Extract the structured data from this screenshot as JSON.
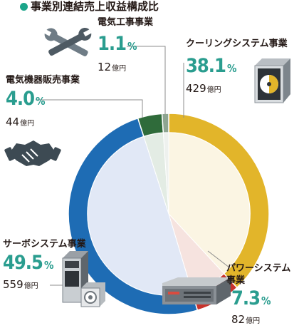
{
  "title": "事業別連結売上収益構成比",
  "colors": {
    "cooling": "#e2b52a",
    "power": "#c8332c",
    "servo": "#1e6cb4",
    "sales": "#2f6b3a",
    "electric": "#8ea591",
    "teal": "#2a9d8f"
  },
  "chart_data": {
    "type": "pie",
    "style": "donut",
    "unit": "億円",
    "categories": [
      "クーリングシステム事業",
      "パワーシステム事業",
      "サーボシステム事業",
      "電気機器販売事業",
      "電気工事事業"
    ],
    "values": [
      429,
      82,
      559,
      44,
      12
    ],
    "percentages": [
      38.1,
      7.3,
      49.5,
      4.0,
      1.1
    ],
    "title": "事業別連結売上収益構成比"
  },
  "labels": {
    "cooling": {
      "name": "クーリングシステム事業",
      "pct": "38.1",
      "amount": "429"
    },
    "power": {
      "name_line1": "パワーシステム",
      "name_line2": "事業",
      "pct": "7.3",
      "amount": "82"
    },
    "servo": {
      "name": "サーボシステム事業",
      "pct": "49.5",
      "amount": "559"
    },
    "sales": {
      "name": "電気機器販売事業",
      "pct": "4.0",
      "amount": "44"
    },
    "electric": {
      "name": "電気工事事業",
      "pct": "1.1",
      "amount": "12"
    }
  },
  "units": {
    "percent": "%",
    "yen": "億円"
  },
  "icons": [
    "wrench-icon",
    "handshake-icon",
    "cooling-unit-icon",
    "power-supply-icon",
    "servo-drive-icon"
  ]
}
